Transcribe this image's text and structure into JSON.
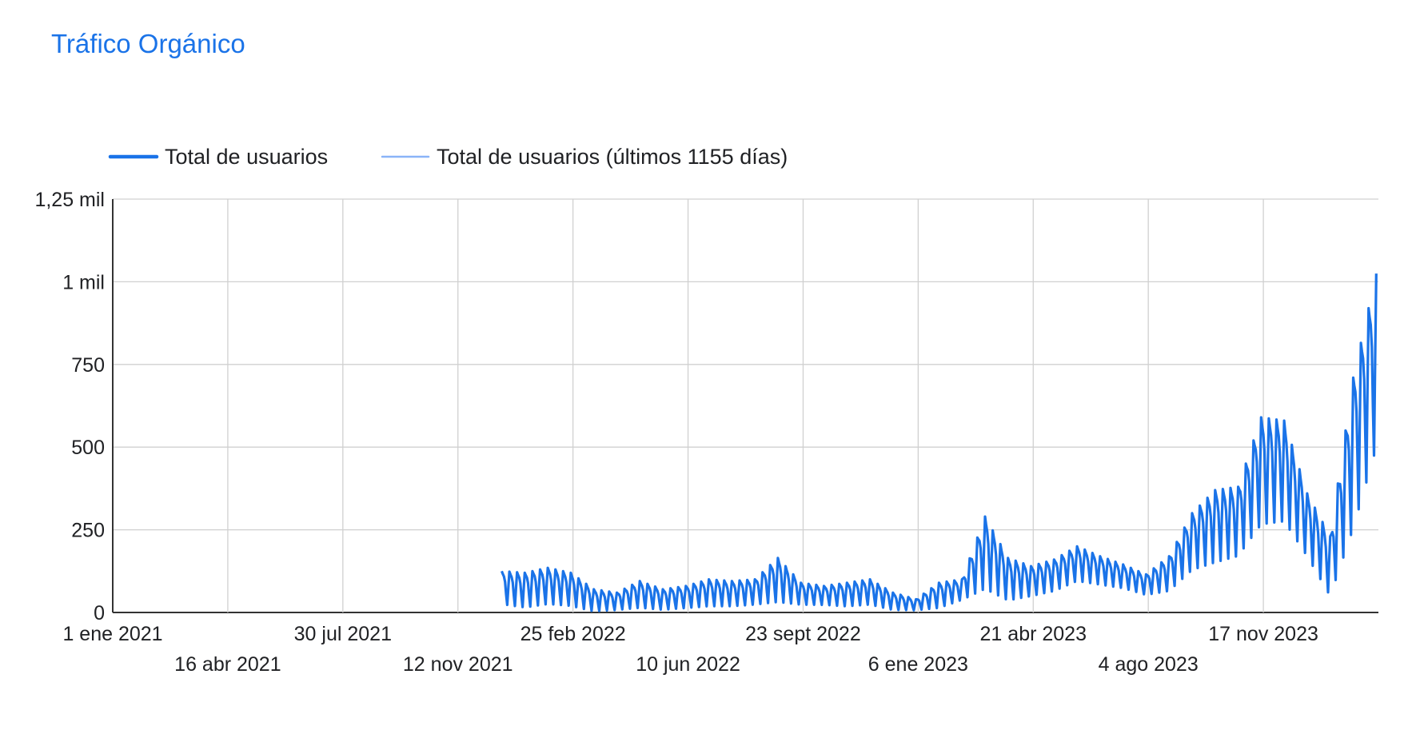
{
  "chart_data": {
    "type": "line",
    "title": "Tráfico Orgánico",
    "xlabel": "",
    "ylabel": "",
    "ylim": [
      0,
      1250
    ],
    "y_ticks": [
      {
        "value": 0,
        "label": "0"
      },
      {
        "value": 250,
        "label": "250"
      },
      {
        "value": 500,
        "label": "500"
      },
      {
        "value": 750,
        "label": "750"
      },
      {
        "value": 1000,
        "label": "1 mil"
      },
      {
        "value": 1250,
        "label": "1,25 mil"
      }
    ],
    "xlim": [
      "2021-01-01",
      "2024-03-01"
    ],
    "x_ticks": [
      {
        "date": "2021-01-01",
        "label": "1 ene 2021",
        "row": 1
      },
      {
        "date": "2021-04-16",
        "label": "16 abr 2021",
        "row": 2
      },
      {
        "date": "2021-07-30",
        "label": "30 jul 2021",
        "row": 1
      },
      {
        "date": "2021-11-12",
        "label": "12 nov 2021",
        "row": 2
      },
      {
        "date": "2022-02-25",
        "label": "25 feb 2022",
        "row": 1
      },
      {
        "date": "2022-06-10",
        "label": "10 jun 2022",
        "row": 2
      },
      {
        "date": "2022-09-23",
        "label": "23 sept 2022",
        "row": 1
      },
      {
        "date": "2023-01-06",
        "label": "6 ene 2023",
        "row": 2
      },
      {
        "date": "2023-04-21",
        "label": "21 abr 2023",
        "row": 1
      },
      {
        "date": "2023-08-04",
        "label": "4 ago 2023",
        "row": 2
      },
      {
        "date": "2023-11-17",
        "label": "17 nov 2023",
        "row": 1
      }
    ],
    "grid": true,
    "legend_position": "top-left",
    "series": [
      {
        "name": "Total de usuarios",
        "color": "#1a73e8",
        "style": "solid-thick",
        "x": [
          "2021-12-22",
          "2022-01-12",
          "2022-02-02",
          "2022-02-23",
          "2022-03-16",
          "2022-04-06",
          "2022-04-27",
          "2022-05-18",
          "2022-06-08",
          "2022-06-29",
          "2022-07-20",
          "2022-08-10",
          "2022-08-31",
          "2022-09-21",
          "2022-10-12",
          "2022-11-02",
          "2022-11-23",
          "2022-12-14",
          "2023-01-04",
          "2023-01-25",
          "2023-02-15",
          "2023-03-08",
          "2023-03-29",
          "2023-04-19",
          "2023-05-10",
          "2023-05-31",
          "2023-06-21",
          "2023-07-12",
          "2023-08-02",
          "2023-08-23",
          "2023-09-13",
          "2023-10-04",
          "2023-10-25",
          "2023-11-15",
          "2023-12-06",
          "2023-12-27",
          "2024-01-17",
          "2024-02-07",
          "2024-02-28"
        ],
        "high": [
          125,
          120,
          135,
          120,
          70,
          60,
          95,
          70,
          80,
          100,
          95,
          100,
          165,
          90,
          80,
          90,
          100,
          60,
          40,
          90,
          100,
          290,
          165,
          140,
          160,
          200,
          170,
          145,
          115,
          170,
          300,
          370,
          380,
          590,
          580,
          360,
          230,
          710,
          1025
        ],
        "low": [
          20,
          10,
          20,
          15,
          0,
          5,
          10,
          5,
          10,
          15,
          15,
          20,
          25,
          20,
          20,
          15,
          20,
          5,
          5,
          10,
          35,
          60,
          30,
          45,
          60,
          90,
          80,
          70,
          50,
          60,
          120,
          140,
          160,
          250,
          260,
          160,
          40,
          230,
          470
        ]
      },
      {
        "name": "Total de usuarios (últimos 1155 días)",
        "color": "#8ab4f8",
        "style": "solid-thin",
        "x": [],
        "values": []
      }
    ]
  }
}
